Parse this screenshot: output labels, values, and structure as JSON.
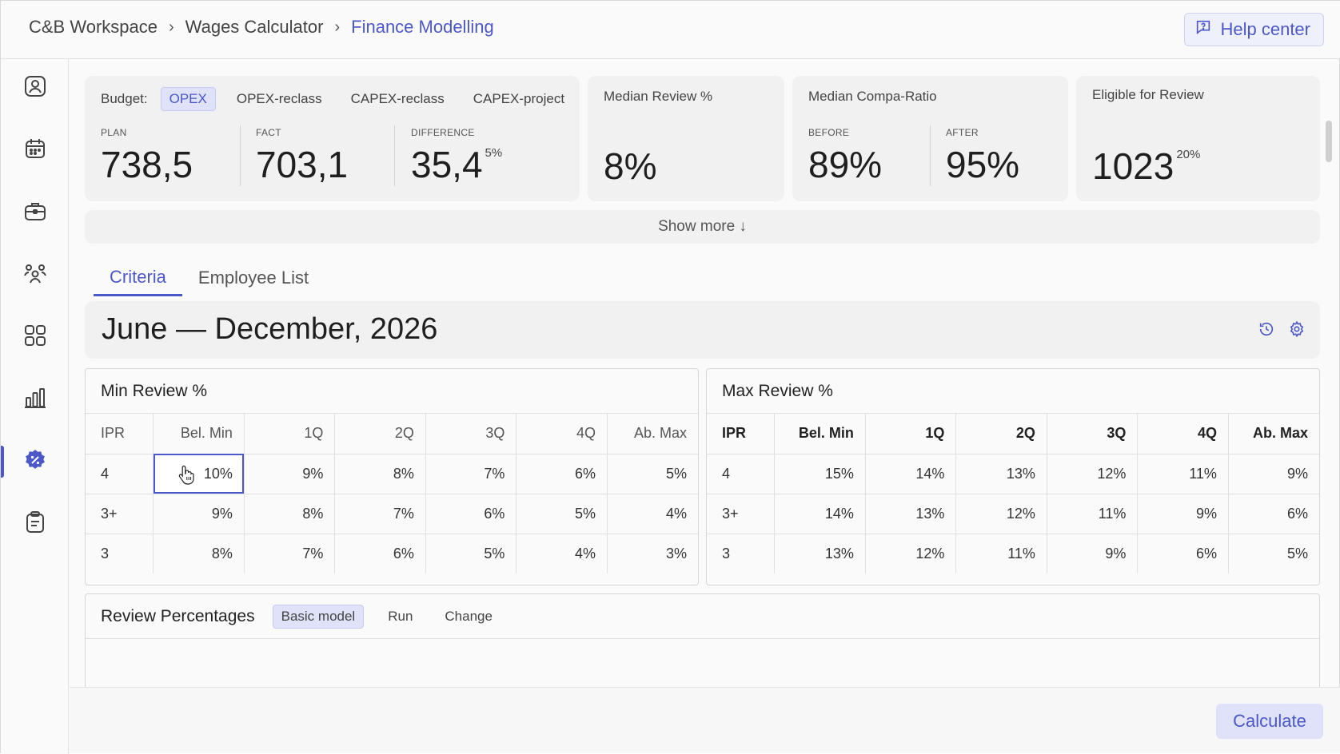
{
  "breadcrumb": [
    "C&B Workspace",
    "Wages Calculator",
    "Finance Modelling"
  ],
  "header": {
    "help_label": "Help center"
  },
  "sidebar": [
    {
      "icon": "profile-icon"
    },
    {
      "icon": "calendar-icon"
    },
    {
      "icon": "briefcase-icon"
    },
    {
      "icon": "team-icon"
    },
    {
      "icon": "grid-icon"
    },
    {
      "icon": "bar-chart-icon"
    },
    {
      "icon": "percent-badge-icon",
      "active": true
    },
    {
      "icon": "clipboard-icon"
    }
  ],
  "budget": {
    "label": "Budget:",
    "chips": [
      "OPEX",
      "OPEX-reclass",
      "CAPEX-reclass",
      "CAPEX-project"
    ],
    "active_chip": "OPEX",
    "plan_label": "PLAN",
    "plan_value": "738,5",
    "fact_label": "FACT",
    "fact_value": "703,1",
    "diff_label": "DIFFERENCE",
    "diff_value": "35,4",
    "diff_pct": "5%"
  },
  "median_review": {
    "title": "Median Review %",
    "value": "8%"
  },
  "compa_ratio": {
    "title": "Median Compa-Ratio",
    "before_label": "BEFORE",
    "before_value": "89%",
    "after_label": "AFTER",
    "after_value": "95%"
  },
  "eligible": {
    "title": "Eligible for Review",
    "value": "1023",
    "pct": "20%"
  },
  "show_more": "Show more ↓",
  "tabs": [
    "Criteria",
    "Employee List"
  ],
  "period": {
    "title": "June — December, 2026"
  },
  "min_table": {
    "title": "Min Review %",
    "headers": [
      "IPR",
      "Bel. Min",
      "1Q",
      "2Q",
      "3Q",
      "4Q",
      "Ab. Max"
    ],
    "rows": [
      [
        "4",
        "10%",
        "9%",
        "8%",
        "7%",
        "6%",
        "5%"
      ],
      [
        "3+",
        "9%",
        "8%",
        "7%",
        "6%",
        "5%",
        "4%"
      ],
      [
        "3",
        "8%",
        "7%",
        "6%",
        "5%",
        "4%",
        "3%"
      ]
    ]
  },
  "max_table": {
    "title": "Max Review %",
    "headers": [
      "IPR",
      "Bel. Min",
      "1Q",
      "2Q",
      "3Q",
      "4Q",
      "Ab. Max"
    ],
    "rows": [
      [
        "4",
        "15%",
        "14%",
        "13%",
        "12%",
        "11%",
        "9%"
      ],
      [
        "3+",
        "14%",
        "13%",
        "12%",
        "11%",
        "9%",
        "6%"
      ],
      [
        "3",
        "13%",
        "12%",
        "11%",
        "9%",
        "6%",
        "5%"
      ]
    ]
  },
  "review_percentages": {
    "title": "Review Percentages",
    "chips": [
      "Basic model",
      "Run",
      "Change"
    ],
    "active_chip": "Basic model"
  },
  "footer": {
    "calculate_label": "Calculate"
  },
  "colors": {
    "accent": "#4c58c7",
    "accent_bg": "#dfe2f8",
    "card_bg": "#f1f1f1"
  }
}
